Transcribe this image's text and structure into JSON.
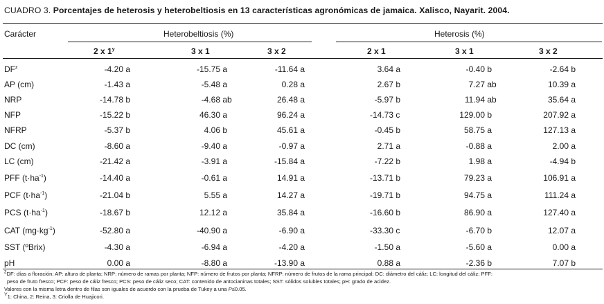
{
  "table": {
    "label": "CUADRO 3.",
    "caption": "Porcentajes de heterosis y heterobeltiosis  en 13 características agronómicas de jamaica. Xalisco, Nayarit. 2004.",
    "col_character": "Carácter",
    "group_heterobeltiosis": "Heterobeltiosis (%)",
    "group_heterosis": "Heterosis (%)",
    "subheaders": [
      "2 x 1",
      "3 x 1",
      "3 x 2",
      "2 x 1",
      "3 x 1",
      "3 x 2"
    ],
    "subheader_first_sup": "y",
    "rows": [
      {
        "name": "DF",
        "sup": "z",
        "unit": "",
        "unit_sup": "",
        "unit_tail": "",
        "hb21": "-4.20 a",
        "hb31": "-15.75 a",
        "hb32": "-11.64 a",
        "h21": "3.64 a",
        "h31": "-0.40 b",
        "h32": "-2.64 b"
      },
      {
        "name": "AP (cm)",
        "sup": "",
        "unit": "",
        "unit_sup": "",
        "unit_tail": "",
        "hb21": "-1.43 a",
        "hb31": "-5.48 a",
        "hb32": "0.28 a",
        "h21": "2.67 b",
        "h31": "7.27 ab",
        "h32": "10.39 a"
      },
      {
        "name": "NRP",
        "sup": "",
        "unit": "",
        "unit_sup": "",
        "unit_tail": "",
        "hb21": "-14.78 b",
        "hb31": "-4.68 ab",
        "hb32": "26.48 a",
        "h21": "-5.97 b",
        "h31": "11.94 ab",
        "h32": "35.64 a"
      },
      {
        "name": "NFP",
        "sup": "",
        "unit": "",
        "unit_sup": "",
        "unit_tail": "",
        "hb21": "-15.22 b",
        "hb31": "46.30 a",
        "hb32": "96.24 a",
        "h21": "-14.73 c",
        "h31": "129.00 b",
        "h32": "207.92 a"
      },
      {
        "name": "NFRP",
        "sup": "",
        "unit": "",
        "unit_sup": "",
        "unit_tail": "",
        "hb21": "-5.37 b",
        "hb31": "4.06 b",
        "hb32": "45.61 a",
        "h21": "-0.45 b",
        "h31": "58.75 a",
        "h32": "127.13 a"
      },
      {
        "name": "DC (cm)",
        "sup": "",
        "unit": "",
        "unit_sup": "",
        "unit_tail": "",
        "hb21": "-8.60 a",
        "hb31": "-9.40 a",
        "hb32": "-0.97 a",
        "h21": "2.71 a",
        "h31": "-0.88 a",
        "h32": "2.00 a"
      },
      {
        "name": "LC (cm)",
        "sup": "",
        "unit": "",
        "unit_sup": "",
        "unit_tail": "",
        "hb21": "-21.42 a",
        "hb31": "-3.91 a",
        "hb32": "-15.84 a",
        "h21": "-7.22 b",
        "h31": "1.98 a",
        "h32": "-4.94 b"
      },
      {
        "name": "PFF",
        "sup": "",
        "unit": " (t·ha",
        "unit_sup": "-1",
        "unit_tail": ")",
        "hb21": "-14.40 a",
        "hb31": "-0.61 a",
        "hb32": "14.91 a",
        "h21": "-13.71 b",
        "h31": "79.23 a",
        "h32": "106.91 a"
      },
      {
        "name": "PCF",
        "sup": "",
        "unit": " (t·ha",
        "unit_sup": "-1",
        "unit_tail": ")",
        "hb21": "-21.04 b",
        "hb31": "5.55 a",
        "hb32": "14.27 a",
        "h21": "-19.71 b",
        "h31": "94.75 a",
        "h32": "111.24 a"
      },
      {
        "name": "PCS",
        "sup": "",
        "unit": " (t·ha",
        "unit_sup": "-1",
        "unit_tail": ")",
        "hb21": "-18.67 b",
        "hb31": "12.12 a",
        "hb32": "35.84 a",
        "h21": "-16.60 b",
        "h31": "86.90 a",
        "h32": "127.40 a"
      },
      {
        "name": "CAT",
        "sup": "",
        "unit": " (mg·kg",
        "unit_sup": "-1",
        "unit_tail": ")",
        "hb21": "-52.80 a",
        "hb31": "-40.90 a",
        "hb32": "-6.90 a",
        "h21": "-33.30 c",
        "h31": "-6.70 b",
        "h32": "12.07 a"
      },
      {
        "name": "SST",
        "sup": "",
        "unit": "  (ºBrix)",
        "unit_sup": "",
        "unit_tail": "",
        "hb21": "-4.30 a",
        "hb31": "-6.94 a",
        "hb32": "-4.20 a",
        "h21": "-1.50 a",
        "h31": "-5.60 a",
        "h32": "0.00 a"
      },
      {
        "name": "pH",
        "sup": "",
        "unit": "",
        "unit_sup": "",
        "unit_tail": "",
        "hb21": "0.00 a",
        "hb31": "-8.80 a",
        "hb32": "-13.90 a",
        "h21": "0.88 a",
        "h31": "-2.36 b",
        "h32": "7.07 b"
      }
    ]
  },
  "footnotes": {
    "z_mark": "z",
    "z_line1": "DF: días a floración; AP: altura de planta; NRP: número de ramas por planta; NFP: número de frutos por planta; NFRP: número de frutos de la rama principal; DC: diámetro del cáliz; LC: longitud del cáliz; PFF:",
    "z_line2": "peso de fruto fresco; PCF: peso de cáliz fresco; PCS: peso de cáliz seco; CAT: contenido de antocianinas  totales; SST: sólidos solubles totales; pH: grado de acidez.",
    "tukey_pre": "Valores con la misma letra dentro de filas son iguales de acuerdo con la prueba de Tukey a una ",
    "tukey_p": "P",
    "tukey_post": "≤0.05.",
    "y_mark": "Y",
    "y_text": "1: China, 2: Reina, 3: Criolla de Huajicori."
  }
}
